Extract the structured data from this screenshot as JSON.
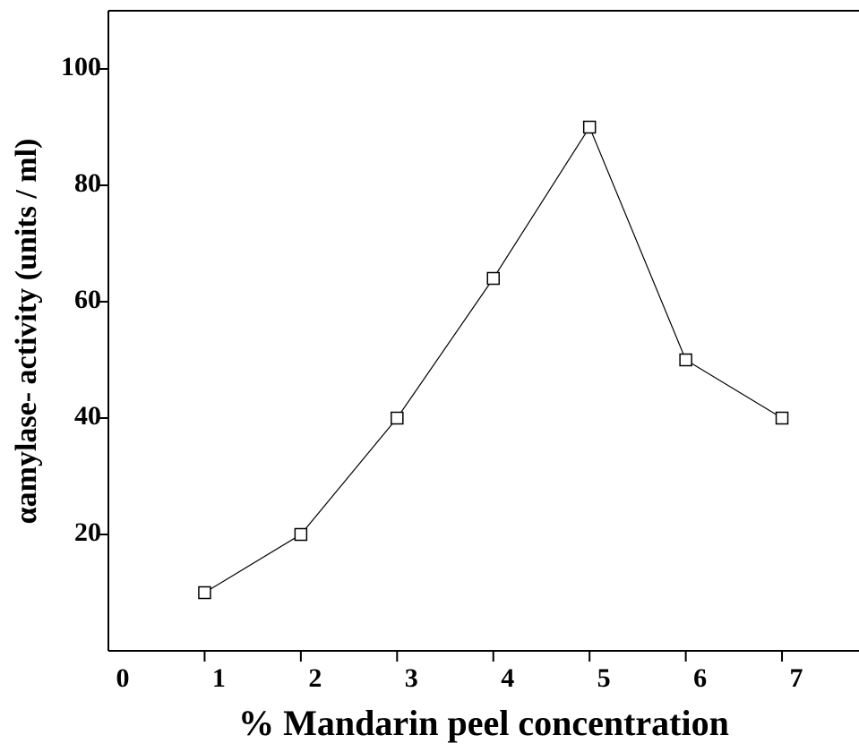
{
  "chart_data": {
    "type": "line",
    "x_label": "% Mandarin peel concentration",
    "y_label": "αamylase- activity (units / ml)",
    "x": [
      1,
      2,
      3,
      4,
      5,
      6,
      7
    ],
    "series": [
      {
        "name": "α-amylase activity",
        "color": "#000000",
        "values": [
          10,
          20,
          40,
          64,
          90,
          50,
          40
        ]
      }
    ],
    "xlim": [
      0,
      7.8
    ],
    "xticks": [
      0,
      1,
      2,
      3,
      4,
      5,
      6,
      7
    ],
    "ylim": [
      0,
      110
    ],
    "yticks": [
      20,
      40,
      60,
      80,
      100
    ],
    "grid": false
  }
}
